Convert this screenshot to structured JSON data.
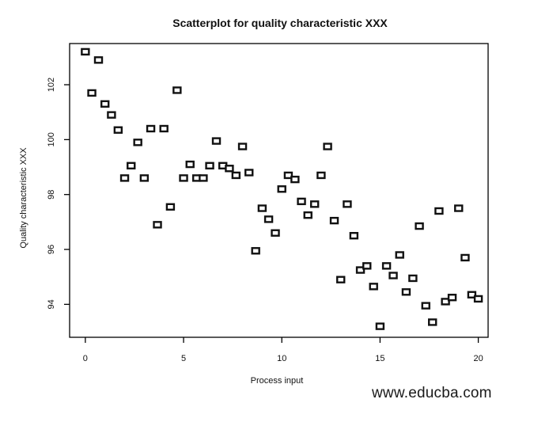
{
  "watermark": "www.educba.com",
  "chart_data": {
    "type": "scatter",
    "title": "Scatterplot for quality characteristic XXX",
    "xlabel": "Process input",
    "ylabel": "Quality characteristic XXX",
    "xlim": [
      -0.8,
      20.5
    ],
    "ylim": [
      92.8,
      103.5
    ],
    "xticks": [
      0,
      5,
      10,
      15,
      20
    ],
    "yticks": [
      94,
      96,
      98,
      100,
      102
    ],
    "xtick_labels": [
      "0",
      "5",
      "10",
      "15",
      "20"
    ],
    "ytick_labels": [
      "94",
      "96",
      "98",
      "100",
      "102"
    ],
    "grid": false,
    "points": [
      {
        "x": 0.0,
        "y": 103.2
      },
      {
        "x": 0.33,
        "y": 101.7
      },
      {
        "x": 0.67,
        "y": 102.9
      },
      {
        "x": 1.0,
        "y": 101.3
      },
      {
        "x": 1.33,
        "y": 100.9
      },
      {
        "x": 1.67,
        "y": 100.35
      },
      {
        "x": 2.0,
        "y": 98.6
      },
      {
        "x": 2.33,
        "y": 99.05
      },
      {
        "x": 2.67,
        "y": 99.9
      },
      {
        "x": 3.0,
        "y": 98.6
      },
      {
        "x": 3.33,
        "y": 100.4
      },
      {
        "x": 3.67,
        "y": 96.9
      },
      {
        "x": 4.0,
        "y": 100.4
      },
      {
        "x": 4.33,
        "y": 97.55
      },
      {
        "x": 4.67,
        "y": 101.8
      },
      {
        "x": 5.0,
        "y": 98.6
      },
      {
        "x": 5.33,
        "y": 99.1
      },
      {
        "x": 5.67,
        "y": 98.6
      },
      {
        "x": 6.0,
        "y": 98.6
      },
      {
        "x": 6.33,
        "y": 99.05
      },
      {
        "x": 6.67,
        "y": 99.95
      },
      {
        "x": 7.0,
        "y": 99.05
      },
      {
        "x": 7.33,
        "y": 98.95
      },
      {
        "x": 7.67,
        "y": 98.7
      },
      {
        "x": 8.0,
        "y": 99.75
      },
      {
        "x": 8.33,
        "y": 98.8
      },
      {
        "x": 8.67,
        "y": 95.95
      },
      {
        "x": 9.0,
        "y": 97.5
      },
      {
        "x": 9.33,
        "y": 97.1
      },
      {
        "x": 9.67,
        "y": 96.6
      },
      {
        "x": 10.0,
        "y": 98.2
      },
      {
        "x": 10.33,
        "y": 98.7
      },
      {
        "x": 10.67,
        "y": 98.55
      },
      {
        "x": 11.0,
        "y": 97.75
      },
      {
        "x": 11.33,
        "y": 97.25
      },
      {
        "x": 11.67,
        "y": 97.65
      },
      {
        "x": 12.0,
        "y": 98.7
      },
      {
        "x": 12.33,
        "y": 99.75
      },
      {
        "x": 12.67,
        "y": 97.05
      },
      {
        "x": 13.0,
        "y": 94.9
      },
      {
        "x": 13.33,
        "y": 97.65
      },
      {
        "x": 13.67,
        "y": 96.5
      },
      {
        "x": 14.0,
        "y": 95.25
      },
      {
        "x": 14.33,
        "y": 95.4
      },
      {
        "x": 14.67,
        "y": 94.65
      },
      {
        "x": 15.0,
        "y": 93.2
      },
      {
        "x": 15.33,
        "y": 95.4
      },
      {
        "x": 15.67,
        "y": 95.05
      },
      {
        "x": 16.0,
        "y": 95.8
      },
      {
        "x": 16.33,
        "y": 94.45
      },
      {
        "x": 16.67,
        "y": 94.95
      },
      {
        "x": 17.0,
        "y": 96.85
      },
      {
        "x": 17.33,
        "y": 93.95
      },
      {
        "x": 17.67,
        "y": 93.35
      },
      {
        "x": 18.0,
        "y": 97.4
      },
      {
        "x": 18.33,
        "y": 94.1
      },
      {
        "x": 18.67,
        "y": 94.25
      },
      {
        "x": 19.0,
        "y": 97.5
      },
      {
        "x": 19.33,
        "y": 95.7
      },
      {
        "x": 19.67,
        "y": 94.35
      },
      {
        "x": 20.0,
        "y": 94.2
      }
    ]
  }
}
